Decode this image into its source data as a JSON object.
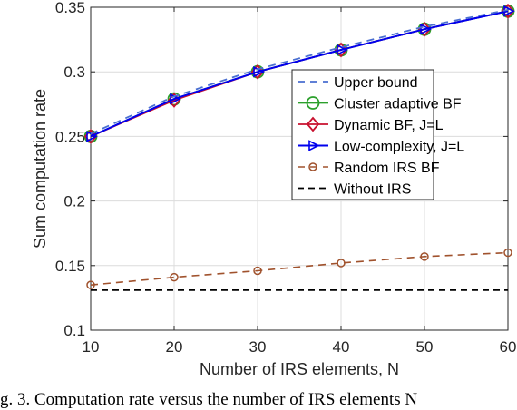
{
  "chart_data": {
    "type": "line",
    "xlabel": "Number of IRS elements, N",
    "ylabel": "Sum computation rate",
    "xlim": [
      10,
      60
    ],
    "ylim": [
      0.1,
      0.35
    ],
    "xticks": [
      "10",
      "20",
      "30",
      "40",
      "50",
      "60"
    ],
    "yticks": [
      "0.1",
      "0.15",
      "0.2",
      "0.25",
      "0.3",
      "0.35"
    ],
    "grid": true,
    "legend_position": "right",
    "x": [
      10,
      20,
      30,
      40,
      50,
      60
    ],
    "series": [
      {
        "name": "Upper bound",
        "values": [
          0.252,
          0.281,
          0.302,
          0.319,
          0.335,
          0.348
        ],
        "color": "#4a6fd1",
        "dash": "dashed",
        "marker": "none"
      },
      {
        "name": "Cluster adaptive BF",
        "values": [
          0.25,
          0.279,
          0.3,
          0.317,
          0.333,
          0.347
        ],
        "color": "#2ca02c",
        "dash": "solid",
        "marker": "circle"
      },
      {
        "name": "Dynamic BF, J=L",
        "values": [
          0.25,
          0.278,
          0.3,
          0.317,
          0.333,
          0.347
        ],
        "color": "#c8102e",
        "dash": "solid",
        "marker": "diamond"
      },
      {
        "name": "Low-complexity, J=L",
        "values": [
          0.25,
          0.279,
          0.3,
          0.317,
          0.333,
          0.347
        ],
        "color": "#0000ee",
        "dash": "solid",
        "marker": "triangle-right"
      },
      {
        "name": "Random IRS BF",
        "values": [
          0.135,
          0.141,
          0.146,
          0.152,
          0.157,
          0.16
        ],
        "color": "#a0522d",
        "dash": "dashed",
        "marker": "circle-small"
      },
      {
        "name": "Without IRS",
        "values": [
          0.131,
          0.131,
          0.131,
          0.131,
          0.131,
          0.131
        ],
        "color": "#000000",
        "dash": "dashed",
        "marker": "none"
      }
    ]
  },
  "caption": "g. 3.  Computation rate versus the number of IRS elements N"
}
